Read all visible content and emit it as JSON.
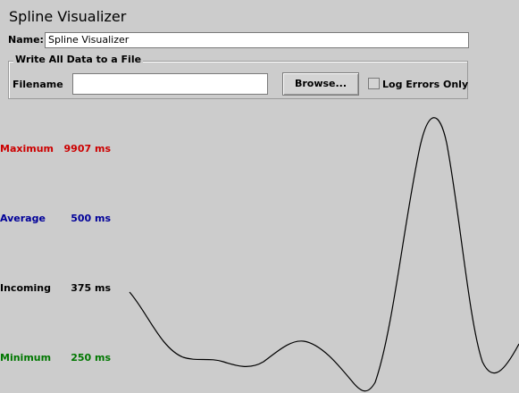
{
  "window": {
    "title": "Spline Visualizer"
  },
  "name_field": {
    "label": "Name:",
    "value": "Spline Visualizer"
  },
  "file_panel": {
    "legend": "Write All Data to a File",
    "filename_label": "Filename",
    "filename_value": "",
    "browse_label": "Browse...",
    "log_errors_label": "Log Errors Only",
    "log_errors_checked": false
  },
  "stats": {
    "maximum": {
      "label": "Maximum",
      "value": "9907 ms",
      "color": "#cc0000"
    },
    "average": {
      "label": "Average",
      "value": "500 ms",
      "color": "#000099"
    },
    "incoming": {
      "label": "Incoming",
      "value": "375 ms",
      "color": "#000000"
    },
    "minimum": {
      "label": "Minimum",
      "value": "250 ms",
      "color": "#007700"
    }
  },
  "icons": {
    "checkbox": "checkbox-icon"
  }
}
